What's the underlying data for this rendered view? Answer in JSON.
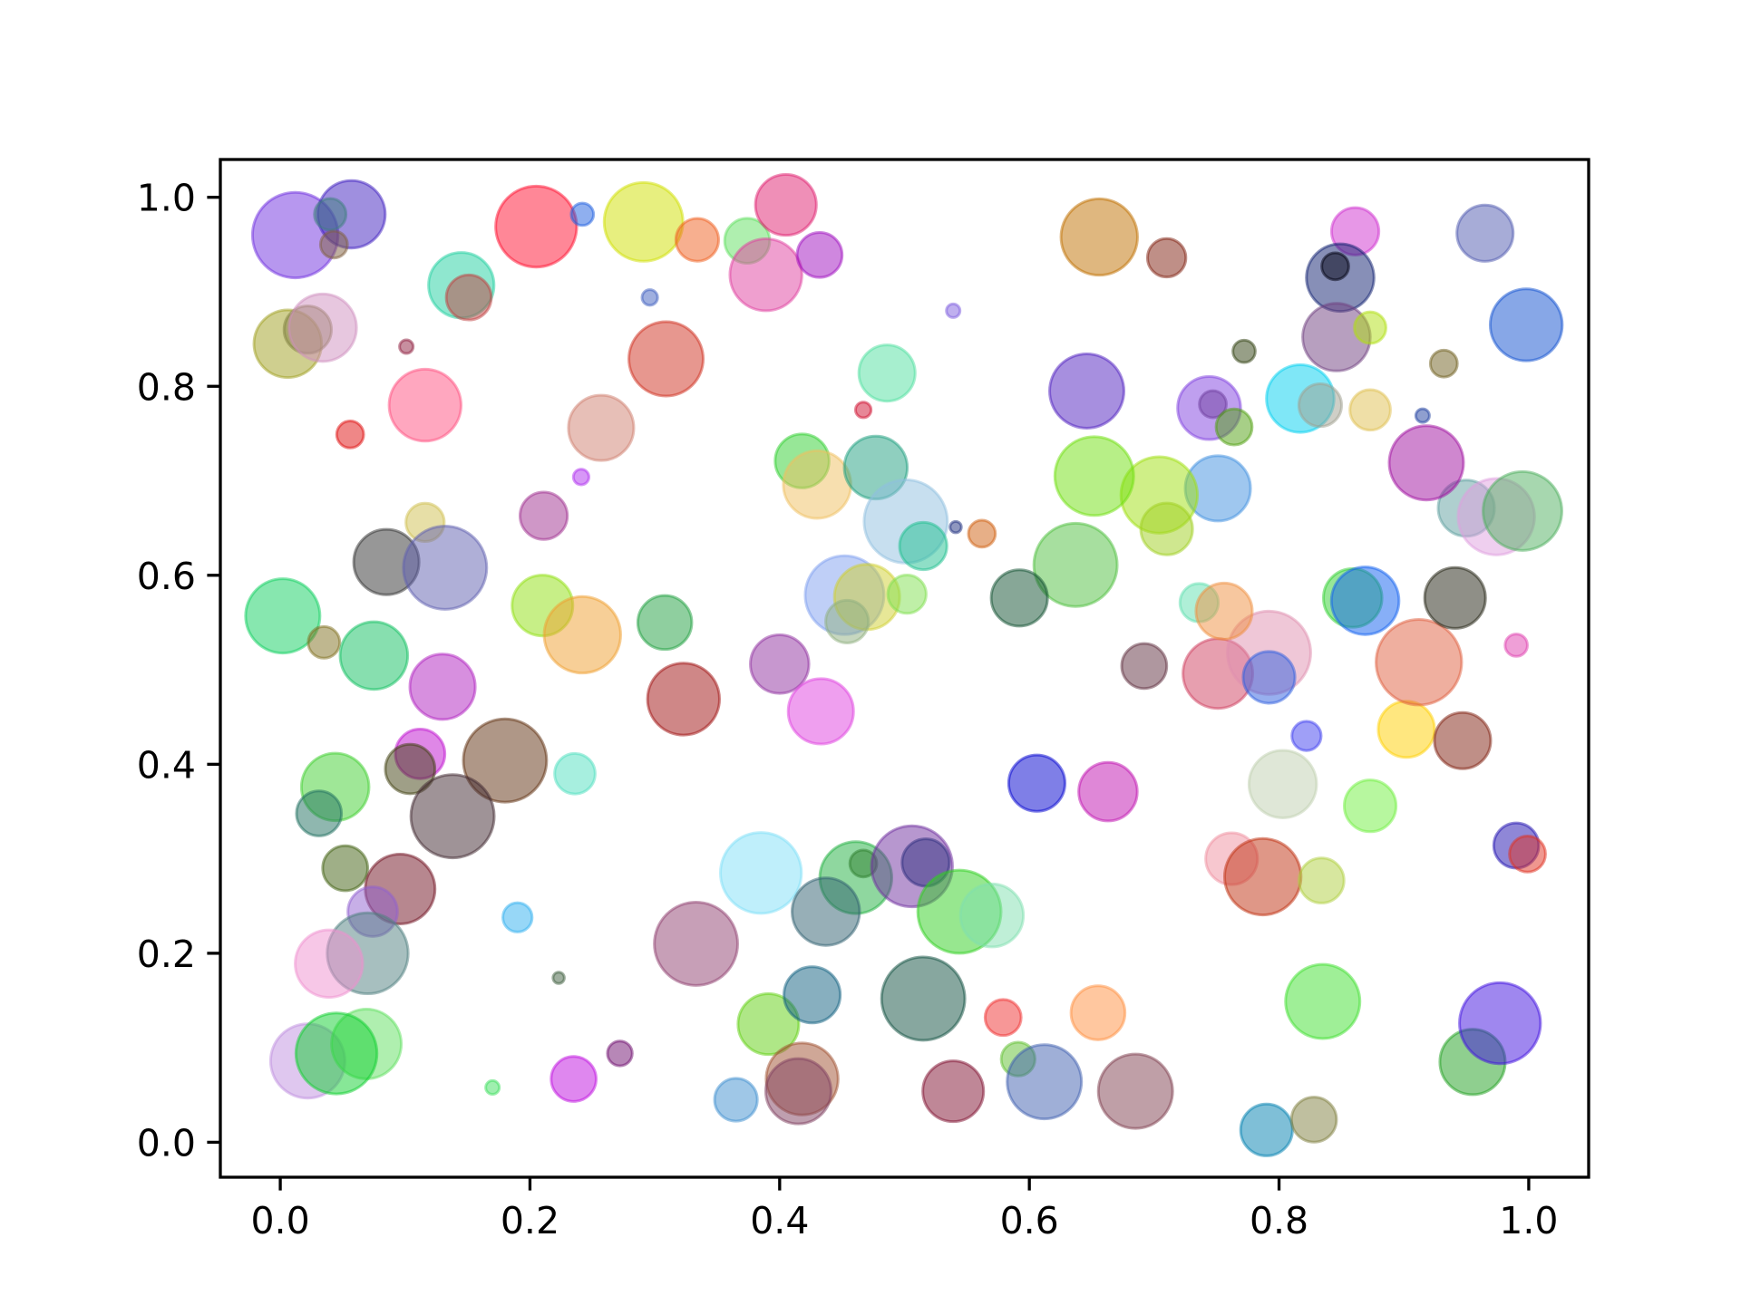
{
  "chart_data": {
    "type": "scatter",
    "xlim": [
      -0.048,
      1.048
    ],
    "ylim": [
      -0.037,
      1.04
    ],
    "xticks": [
      {
        "value": 0,
        "label": "0.0"
      },
      0.2,
      0.4,
      0.6,
      0.8,
      {
        "value": 1,
        "label": "1.0"
      }
    ],
    "yticks": [
      {
        "value": 0,
        "label": "0.0"
      },
      0.2,
      0.4,
      0.6,
      0.8,
      {
        "value": 1,
        "label": "1.0"
      }
    ],
    "alpha": 0.5,
    "x": [
      0.012,
      0.057,
      0.04,
      0.043,
      0.205,
      0.242,
      0.291,
      0.334,
      0.374,
      0.405,
      0.389,
      0.432,
      0.145,
      0.151,
      0.296,
      0.006,
      0.022,
      0.034,
      0.101,
      0.116,
      0.056,
      0.309,
      0.257,
      0.241,
      0.211,
      0.116,
      0.085,
      0.132,
      0.002,
      0.035,
      0.075,
      0.13,
      0.21,
      0.242,
      0.308,
      0.323,
      0.4,
      0.433,
      0.044,
      0.031,
      0.112,
      0.104,
      0.18,
      0.138,
      0.236,
      0.052,
      0.096,
      0.074,
      0.07,
      0.039,
      0.022,
      0.069,
      0.045,
      0.19,
      0.223,
      0.17,
      0.235,
      0.272,
      0.333,
      0.385,
      0.467,
      0.461,
      0.437,
      0.506,
      0.517,
      0.544,
      0.57,
      0.391,
      0.426,
      0.515,
      0.418,
      0.415,
      0.365,
      0.539,
      0.579,
      0.591,
      0.612,
      0.655,
      0.685,
      0.79,
      0.828,
      0.835,
      0.955,
      0.977,
      0.99,
      0.999,
      0.762,
      0.787,
      0.834,
      0.803,
      0.873,
      0.822,
      0.902,
      0.947,
      0.912,
      0.99,
      0.692,
      0.751,
      0.792,
      0.792,
      0.736,
      0.756,
      0.859,
      0.869,
      0.941,
      0.95,
      0.974,
      0.995,
      0.918,
      0.915,
      0.873,
      0.932,
      0.998,
      0.965,
      0.861,
      0.849,
      0.845,
      0.846,
      0.873,
      0.817,
      0.833,
      0.772,
      0.744,
      0.747,
      0.764,
      0.751,
      0.704,
      0.71,
      0.652,
      0.646,
      0.656,
      0.71,
      0.637,
      0.592,
      0.562,
      0.541,
      0.539,
      0.486,
      0.467,
      0.418,
      0.43,
      0.477,
      0.501,
      0.515,
      0.452,
      0.47,
      0.454,
      0.502,
      0.606,
      0.663
    ],
    "y": [
      0.96,
      0.982,
      0.982,
      0.95,
      0.969,
      0.982,
      0.974,
      0.955,
      0.954,
      0.992,
      0.918,
      0.939,
      0.907,
      0.894,
      0.894,
      0.845,
      0.86,
      0.862,
      0.842,
      0.78,
      0.749,
      0.829,
      0.756,
      0.704,
      0.663,
      0.656,
      0.614,
      0.608,
      0.557,
      0.529,
      0.515,
      0.482,
      0.568,
      0.537,
      0.55,
      0.469,
      0.506,
      0.456,
      0.376,
      0.348,
      0.411,
      0.395,
      0.404,
      0.345,
      0.39,
      0.29,
      0.268,
      0.244,
      0.2,
      0.189,
      0.086,
      0.104,
      0.094,
      0.238,
      0.174,
      0.058,
      0.067,
      0.094,
      0.21,
      0.285,
      0.295,
      0.28,
      0.244,
      0.292,
      0.296,
      0.244,
      0.24,
      0.125,
      0.156,
      0.152,
      0.067,
      0.054,
      0.045,
      0.054,
      0.132,
      0.088,
      0.064,
      0.137,
      0.054,
      0.013,
      0.024,
      0.149,
      0.085,
      0.126,
      0.314,
      0.305,
      0.3,
      0.281,
      0.277,
      0.379,
      0.356,
      0.43,
      0.437,
      0.425,
      0.508,
      0.526,
      0.504,
      0.496,
      0.518,
      0.492,
      0.571,
      0.562,
      0.576,
      0.573,
      0.576,
      0.671,
      0.662,
      0.668,
      0.719,
      0.769,
      0.775,
      0.824,
      0.865,
      0.962,
      0.964,
      0.915,
      0.927,
      0.852,
      0.862,
      0.787,
      0.78,
      0.837,
      0.777,
      0.781,
      0.757,
      0.692,
      0.685,
      0.649,
      0.705,
      0.795,
      0.958,
      0.936,
      0.611,
      0.576,
      0.644,
      0.651,
      0.88,
      0.814,
      0.775,
      0.721,
      0.696,
      0.714,
      0.657,
      0.631,
      0.579,
      0.577,
      0.551,
      0.58,
      0.38,
      0.371
    ],
    "sizes": [
      513,
      320,
      70,
      51,
      460,
      35,
      435,
      128,
      142,
      260,
      363,
      142,
      300,
      142,
      17,
      320,
      157,
      320,
      13,
      363,
      51,
      387,
      299,
      17,
      157,
      103,
      299,
      486,
      387,
      70,
      320,
      299,
      259,
      410,
      204,
      363,
      240,
      299,
      320,
      142,
      172,
      172,
      486,
      486,
      115,
      142,
      341,
      172,
      460,
      320,
      387,
      341,
      460,
      60,
      9,
      13,
      142,
      43,
      486,
      460,
      51,
      363,
      320,
      460,
      157,
      486,
      278,
      259,
      222,
      486,
      363,
      299,
      128,
      259,
      91,
      80,
      387,
      204,
      387,
      188,
      142,
      387,
      299,
      460,
      142,
      91,
      188,
      410,
      142,
      320,
      188,
      60,
      222,
      222,
      513,
      35,
      142,
      341,
      486,
      188,
      103,
      222,
      240,
      320,
      259,
      222,
      410,
      435,
      387,
      13,
      115,
      51,
      363,
      222,
      157,
      320,
      51,
      320,
      70,
      320,
      128,
      35,
      278,
      51,
      91,
      299,
      410,
      188,
      435,
      387,
      410,
      103,
      486,
      222,
      51,
      9,
      13,
      222,
      17,
      204,
      320,
      278,
      486,
      157,
      435,
      299,
      128,
      103,
      222,
      240
    ],
    "colors": [
      "#7030e0",
      "#4020c0",
      "#408080",
      "#806040",
      "#ff1030",
      "#2060e0",
      "#d0e000",
      "#f06020",
      "#60e060",
      "#e02070",
      "#e040a0",
      "#a010c0",
      "#20d0a0",
      "#c04040",
      "#4060c0",
      "#a0a020",
      "#808040",
      "#d090c0",
      "#902040",
      "#ff5080",
      "#e01010",
      "#d03020",
      "#d08070",
      "#b030f0",
      "#a03090",
      "#d0c050",
      "#303030",
      "#6060b0",
      "#10d060",
      "#807020",
      "#10c060",
      "#b020c0",
      "#90e010",
      "#f0a030",
      "#20a040",
      "#a01010",
      "#9030a0",
      "#e040e0",
      "#40d030",
      "#207060",
      "#c010d0",
      "#404010",
      "#603010",
      "#402830",
      "#50e0c0",
      "#406010",
      "#701020",
      "#9060d0",
      "#508080",
      "#f090d0",
      "#c090e0",
      "#60e060",
      "#10d030",
      "#30b0f0",
      "#406040",
      "#40e060",
      "#c010e0",
      "#701070",
      "#904070",
      "#80e0f8",
      "#405020",
      "#20b040",
      "#306070",
      "#7030a0",
      "#303080",
      "#30d020",
      "#80e0b0",
      "#60d010",
      "#106080",
      "#105040",
      "#a05030",
      "#804060",
      "#4090d0",
      "#801030",
      "#f03030",
      "#60c030",
      "#4060b0",
      "#ff9040",
      "#804050",
      "#0080b0",
      "#808040",
      "#40e030",
      "#20a020",
      "#4010e0",
      "#2010b0",
      "#e03020",
      "#f090a0",
      "#c03010",
      "#b0d040",
      "#c0d0b0",
      "#70f040",
      "#4040f0",
      "#ffd000",
      "#802010",
      "#e06040",
      "#e040b0",
      "#603040",
      "#d04060",
      "#e090b0",
      "#3060e0",
      "#60e0b0",
      "#f09040",
      "#30d030",
      "#1060f0",
      "#202010",
      "#60a0a0",
      "#e0a0e0",
      "#50b060",
      "#a010a0",
      "#2040a0",
      "#e0c050",
      "#706020",
      "#1050d0",
      "#505ab0",
      "#d030d0",
      "#102070",
      "#000010",
      "#704080",
      "#b0e010",
      "#00d0f0",
      "#a0a090",
      "#304010",
      "#8040e0",
      "#7040a0",
      "#50a010",
      "#4090e0",
      "#a0e010",
      "#a0d020",
      "#70e010",
      "#5020c0",
      "#c07000",
      "#802010",
      "#50c040",
      "#105030",
      "#d06010",
      "#203080",
      "#8060e0",
      "#50e0a0",
      "#d01030",
      "#30d030",
      "#f0c060",
      "#20a080",
      "#90c0e0",
      "#20c090",
      "#80a0f0",
      "#d0d030",
      "#90b080",
      "#80e050",
      "#0000d0",
      "#c010b0"
    ]
  }
}
